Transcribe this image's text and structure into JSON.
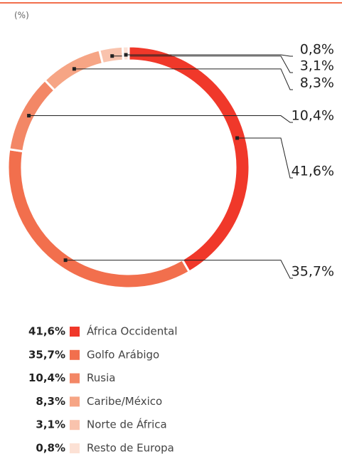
{
  "chart_data": {
    "type": "donut",
    "subtitle": "(%)",
    "categories": [
      "África Occidental",
      "Golfo Arábigo",
      "Rusia",
      "Caribe/México",
      "Norte de África",
      "Resto de Europa"
    ],
    "values": [
      41.6,
      35.7,
      10.4,
      8.3,
      3.1,
      0.8
    ],
    "value_labels": [
      "41,6%",
      "35,7%",
      "10,4%",
      "8,3%",
      "3,1%",
      "0,8%"
    ],
    "colors": [
      "#f0382a",
      "#f26f4d",
      "#f38766",
      "#f6a585",
      "#f9c3ad",
      "#fce1d5"
    ]
  }
}
